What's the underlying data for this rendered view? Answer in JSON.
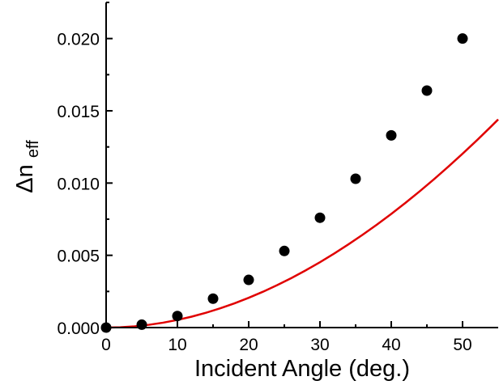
{
  "chart_data": {
    "type": "scatter",
    "title": "",
    "xlabel": "Incident Angle (deg.)",
    "ylabel_parts": {
      "main": "Δn",
      "sub": "eff"
    },
    "xlim": [
      0,
      55
    ],
    "ylim": [
      0,
      0.0225
    ],
    "x_ticks": [
      0,
      10,
      20,
      30,
      40,
      50
    ],
    "x_tick_labels": [
      "0",
      "10",
      "20",
      "30",
      "40",
      "50"
    ],
    "y_ticks": [
      0,
      0.005,
      0.01,
      0.015,
      0.02
    ],
    "y_tick_labels": [
      "0.000",
      "0.005",
      "0.010",
      "0.015",
      "0.020"
    ],
    "grid": false,
    "legend": "none",
    "series": [
      {
        "kind": "points",
        "color": "#000000",
        "x": [
          0,
          5,
          10,
          15,
          20,
          25,
          30,
          35,
          40,
          45,
          50
        ],
        "y": [
          0.0,
          0.0002,
          0.0008,
          0.002,
          0.0033,
          0.0053,
          0.0076,
          0.0103,
          0.0133,
          0.0164,
          0.02
        ]
      },
      {
        "kind": "fit",
        "color": "#e00000",
        "x": [
          0,
          2,
          4,
          6,
          8,
          10,
          12,
          14,
          16,
          18,
          20,
          22,
          24,
          26,
          28,
          30,
          32,
          34,
          36,
          38,
          40,
          42,
          44,
          46,
          48,
          50,
          52,
          54,
          55
        ],
        "y": [
          0.0,
          2.35e-05,
          8.68e-05,
          0.000192,
          0.00034,
          0.000528,
          0.000756,
          0.001024,
          0.001331,
          0.001676,
          0.002059,
          0.002479,
          0.002937,
          0.00343,
          0.00396,
          0.004525,
          0.005125,
          0.00576,
          0.006428,
          0.00713,
          0.007866,
          0.008634,
          0.009435,
          0.010267,
          0.011132,
          0.012028,
          0.012955,
          0.013913,
          0.014402
        ]
      }
    ]
  }
}
